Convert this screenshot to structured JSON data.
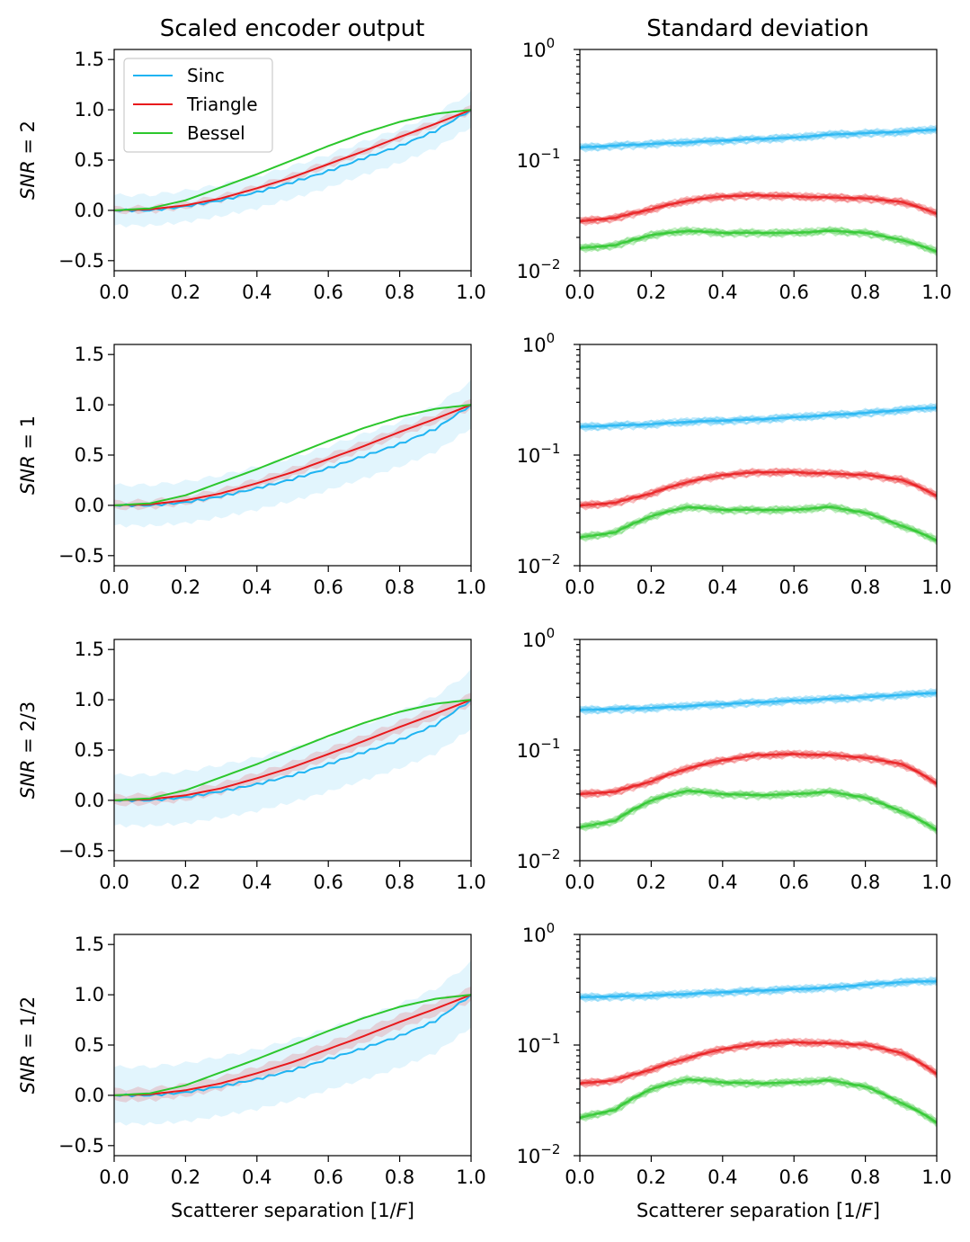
{
  "figure": {
    "column_titles": [
      "Scaled encoder output",
      "Standard deviation"
    ],
    "x_axis_label": "Scatterer separation [1/F]",
    "row_labels": [
      "SNR = 2",
      "SNR = 1",
      "SNR = 2/3",
      "SNR = 1/2"
    ]
  },
  "legend": {
    "placement": "top-left",
    "entries": [
      {
        "label": "Sinc",
        "color": "#1fb4f2"
      },
      {
        "label": "Triangle",
        "color": "#e8191c"
      },
      {
        "label": "Bessel",
        "color": "#2cc72c"
      }
    ]
  },
  "chart_data": [
    {
      "type": "line",
      "panel": "encoder",
      "snr": "SNR = 2",
      "xlim": [
        0,
        1
      ],
      "ylim": [
        -0.6,
        1.6
      ],
      "xticks": [
        "0.0",
        "0.2",
        "0.4",
        "0.6",
        "0.8",
        "1.0"
      ],
      "yticks": [
        "−0.5",
        "0.0",
        "0.5",
        "1.0",
        "1.5"
      ],
      "x": [
        0,
        0.1,
        0.2,
        0.3,
        0.4,
        0.5,
        0.6,
        0.7,
        0.8,
        0.9,
        1.0
      ],
      "series": [
        {
          "name": "Sinc",
          "color": "#1fb4f2",
          "values": [
            0.0,
            0.0,
            0.04,
            0.1,
            0.18,
            0.28,
            0.39,
            0.52,
            0.64,
            0.79,
            1.0
          ],
          "band": 0.15
        },
        {
          "name": "Triangle",
          "color": "#e8191c",
          "values": [
            0.0,
            0.01,
            0.05,
            0.12,
            0.22,
            0.33,
            0.46,
            0.59,
            0.73,
            0.86,
            1.0
          ],
          "band": 0.03
        },
        {
          "name": "Bessel",
          "color": "#2cc72c",
          "values": [
            0.0,
            0.02,
            0.1,
            0.23,
            0.36,
            0.5,
            0.64,
            0.77,
            0.88,
            0.96,
            1.0
          ],
          "band": 0.0
        }
      ]
    },
    {
      "type": "line",
      "panel": "std",
      "snr": "SNR = 2",
      "yscale": "log",
      "xlim": [
        0,
        1
      ],
      "ylim": [
        0.01,
        1
      ],
      "xticks": [
        "0.0",
        "0.2",
        "0.4",
        "0.6",
        "0.8",
        "1.0"
      ],
      "x": [
        0,
        0.1,
        0.2,
        0.3,
        0.4,
        0.5,
        0.6,
        0.7,
        0.8,
        0.9,
        1.0
      ],
      "series": [
        {
          "name": "Sinc",
          "color": "#1fb4f2",
          "values": [
            0.13,
            0.135,
            0.14,
            0.145,
            0.15,
            0.155,
            0.16,
            0.17,
            0.175,
            0.18,
            0.19
          ]
        },
        {
          "name": "Triangle",
          "color": "#e8191c",
          "values": [
            0.028,
            0.03,
            0.036,
            0.043,
            0.047,
            0.048,
            0.047,
            0.046,
            0.045,
            0.042,
            0.033
          ]
        },
        {
          "name": "Bessel",
          "color": "#2cc72c",
          "values": [
            0.016,
            0.017,
            0.021,
            0.023,
            0.022,
            0.022,
            0.022,
            0.023,
            0.022,
            0.019,
            0.015
          ]
        }
      ]
    },
    {
      "type": "line",
      "panel": "encoder",
      "snr": "SNR = 1",
      "xlim": [
        0,
        1
      ],
      "ylim": [
        -0.6,
        1.6
      ],
      "xticks": [
        "0.0",
        "0.2",
        "0.4",
        "0.6",
        "0.8",
        "1.0"
      ],
      "yticks": [
        "−0.5",
        "0.0",
        "0.5",
        "1.0",
        "1.5"
      ],
      "x": [
        0,
        0.1,
        0.2,
        0.3,
        0.4,
        0.5,
        0.6,
        0.7,
        0.8,
        0.9,
        1.0
      ],
      "series": [
        {
          "name": "Sinc",
          "color": "#1fb4f2",
          "values": [
            0.0,
            0.0,
            0.03,
            0.09,
            0.17,
            0.26,
            0.37,
            0.49,
            0.61,
            0.76,
            1.0
          ],
          "band": 0.2
        },
        {
          "name": "Triangle",
          "color": "#e8191c",
          "values": [
            0.0,
            0.01,
            0.05,
            0.12,
            0.22,
            0.33,
            0.46,
            0.59,
            0.73,
            0.86,
            1.0
          ],
          "band": 0.04
        },
        {
          "name": "Bessel",
          "color": "#2cc72c",
          "values": [
            0.0,
            0.02,
            0.1,
            0.23,
            0.36,
            0.5,
            0.64,
            0.77,
            0.88,
            0.96,
            1.0
          ],
          "band": 0.0
        }
      ]
    },
    {
      "type": "line",
      "panel": "std",
      "snr": "SNR = 1",
      "yscale": "log",
      "xlim": [
        0,
        1
      ],
      "ylim": [
        0.01,
        1
      ],
      "xticks": [
        "0.0",
        "0.2",
        "0.4",
        "0.6",
        "0.8",
        "1.0"
      ],
      "x": [
        0,
        0.1,
        0.2,
        0.3,
        0.4,
        0.5,
        0.6,
        0.7,
        0.8,
        0.9,
        1.0
      ],
      "series": [
        {
          "name": "Sinc",
          "color": "#1fb4f2",
          "values": [
            0.18,
            0.185,
            0.19,
            0.2,
            0.205,
            0.21,
            0.22,
            0.23,
            0.24,
            0.255,
            0.27
          ]
        },
        {
          "name": "Triangle",
          "color": "#e8191c",
          "values": [
            0.035,
            0.037,
            0.045,
            0.057,
            0.066,
            0.07,
            0.07,
            0.068,
            0.066,
            0.06,
            0.043
          ]
        },
        {
          "name": "Bessel",
          "color": "#2cc72c",
          "values": [
            0.018,
            0.02,
            0.028,
            0.034,
            0.032,
            0.032,
            0.032,
            0.034,
            0.03,
            0.023,
            0.017
          ]
        }
      ]
    },
    {
      "type": "line",
      "panel": "encoder",
      "snr": "SNR = 2/3",
      "xlim": [
        0,
        1
      ],
      "ylim": [
        -0.6,
        1.6
      ],
      "xticks": [
        "0.0",
        "0.2",
        "0.4",
        "0.6",
        "0.8",
        "1.0"
      ],
      "yticks": [
        "−0.5",
        "0.0",
        "0.5",
        "1.0",
        "1.5"
      ],
      "x": [
        0,
        0.1,
        0.2,
        0.3,
        0.4,
        0.5,
        0.6,
        0.7,
        0.8,
        0.9,
        1.0
      ],
      "series": [
        {
          "name": "Sinc",
          "color": "#1fb4f2",
          "values": [
            0.0,
            0.0,
            0.03,
            0.09,
            0.16,
            0.25,
            0.36,
            0.48,
            0.6,
            0.75,
            1.0
          ],
          "band": 0.25
        },
        {
          "name": "Triangle",
          "color": "#e8191c",
          "values": [
            0.0,
            0.01,
            0.05,
            0.12,
            0.22,
            0.33,
            0.46,
            0.59,
            0.73,
            0.86,
            1.0
          ],
          "band": 0.05
        },
        {
          "name": "Bessel",
          "color": "#2cc72c",
          "values": [
            0.0,
            0.02,
            0.1,
            0.23,
            0.36,
            0.5,
            0.64,
            0.77,
            0.88,
            0.96,
            1.0
          ],
          "band": 0.0
        }
      ]
    },
    {
      "type": "line",
      "panel": "std",
      "snr": "SNR = 2/3",
      "yscale": "log",
      "xlim": [
        0,
        1
      ],
      "ylim": [
        0.01,
        1
      ],
      "xticks": [
        "0.0",
        "0.2",
        "0.4",
        "0.6",
        "0.8",
        "1.0"
      ],
      "x": [
        0,
        0.1,
        0.2,
        0.3,
        0.4,
        0.5,
        0.6,
        0.7,
        0.8,
        0.9,
        1.0
      ],
      "series": [
        {
          "name": "Sinc",
          "color": "#1fb4f2",
          "values": [
            0.23,
            0.235,
            0.24,
            0.25,
            0.26,
            0.27,
            0.28,
            0.29,
            0.3,
            0.315,
            0.33
          ]
        },
        {
          "name": "Triangle",
          "color": "#e8191c",
          "values": [
            0.04,
            0.042,
            0.052,
            0.068,
            0.081,
            0.09,
            0.092,
            0.09,
            0.085,
            0.075,
            0.05
          ]
        },
        {
          "name": "Bessel",
          "color": "#2cc72c",
          "values": [
            0.02,
            0.023,
            0.035,
            0.043,
            0.04,
            0.039,
            0.04,
            0.042,
            0.037,
            0.028,
            0.019
          ]
        }
      ]
    },
    {
      "type": "line",
      "panel": "encoder",
      "snr": "SNR = 1/2",
      "xlim": [
        0,
        1
      ],
      "ylim": [
        -0.6,
        1.6
      ],
      "xticks": [
        "0.0",
        "0.2",
        "0.4",
        "0.6",
        "0.8",
        "1.0"
      ],
      "yticks": [
        "−0.5",
        "0.0",
        "0.5",
        "1.0",
        "1.5"
      ],
      "x": [
        0,
        0.1,
        0.2,
        0.3,
        0.4,
        0.5,
        0.6,
        0.7,
        0.8,
        0.9,
        1.0
      ],
      "series": [
        {
          "name": "Sinc",
          "color": "#1fb4f2",
          "values": [
            0.0,
            0.0,
            0.03,
            0.09,
            0.16,
            0.25,
            0.36,
            0.47,
            0.59,
            0.74,
            1.0
          ],
          "band": 0.28
        },
        {
          "name": "Triangle",
          "color": "#e8191c",
          "values": [
            0.0,
            0.01,
            0.05,
            0.12,
            0.22,
            0.33,
            0.46,
            0.59,
            0.73,
            0.86,
            1.0
          ],
          "band": 0.06
        },
        {
          "name": "Bessel",
          "color": "#2cc72c",
          "values": [
            0.0,
            0.02,
            0.1,
            0.23,
            0.36,
            0.5,
            0.64,
            0.77,
            0.88,
            0.96,
            1.0
          ],
          "band": 0.0
        }
      ]
    },
    {
      "type": "line",
      "panel": "std",
      "snr": "SNR = 1/2",
      "yscale": "log",
      "xlim": [
        0,
        1
      ],
      "ylim": [
        0.01,
        1
      ],
      "xticks": [
        "0.0",
        "0.2",
        "0.4",
        "0.6",
        "0.8",
        "1.0"
      ],
      "x": [
        0,
        0.1,
        0.2,
        0.3,
        0.4,
        0.5,
        0.6,
        0.7,
        0.8,
        0.9,
        1.0
      ],
      "series": [
        {
          "name": "Sinc",
          "color": "#1fb4f2",
          "values": [
            0.27,
            0.275,
            0.28,
            0.29,
            0.3,
            0.31,
            0.32,
            0.33,
            0.35,
            0.37,
            0.38
          ]
        },
        {
          "name": "Triangle",
          "color": "#e8191c",
          "values": [
            0.045,
            0.048,
            0.06,
            0.076,
            0.092,
            0.102,
            0.106,
            0.104,
            0.1,
            0.085,
            0.055
          ]
        },
        {
          "name": "Bessel",
          "color": "#2cc72c",
          "values": [
            0.022,
            0.026,
            0.04,
            0.049,
            0.046,
            0.045,
            0.046,
            0.048,
            0.042,
            0.03,
            0.02
          ]
        }
      ]
    }
  ]
}
